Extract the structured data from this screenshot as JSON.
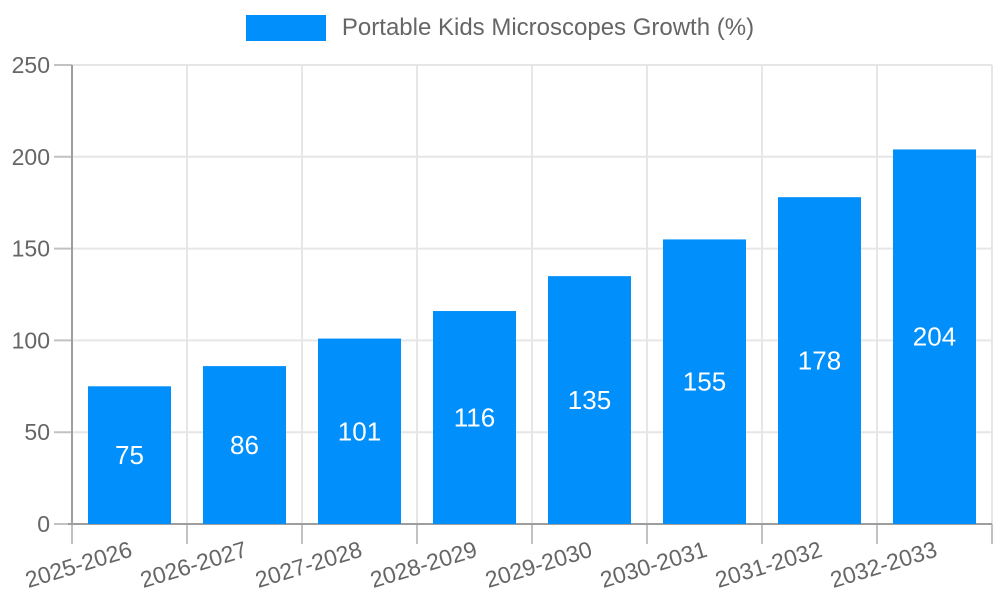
{
  "legend": {
    "label": "Portable Kids Microscopes Growth (%)"
  },
  "colors": {
    "bar": "#008FFB",
    "bar_label": "#ffffff",
    "axis_text": "#666666",
    "axis_line": "#9e9e9e",
    "tick_line": "#c2c2c2",
    "grid_line": "#e6e6e6",
    "background": "#ffffff"
  },
  "chart_data": {
    "type": "bar",
    "title": "Portable Kids Microscopes Growth (%)",
    "categories": [
      "2025-2026",
      "2026-2027",
      "2027-2028",
      "2028-2029",
      "2029-2030",
      "2030-2031",
      "2031-2032",
      "2032-2033"
    ],
    "values": [
      75,
      86,
      101,
      116,
      135,
      155,
      178,
      204
    ],
    "xlabel": "",
    "ylabel": "",
    "ylim": [
      0,
      250
    ],
    "yticks": [
      0,
      50,
      100,
      150,
      200,
      250
    ],
    "grid": true,
    "legend_position": "top",
    "bar_labels_inside": true,
    "x_tick_rotation_deg": -17
  }
}
